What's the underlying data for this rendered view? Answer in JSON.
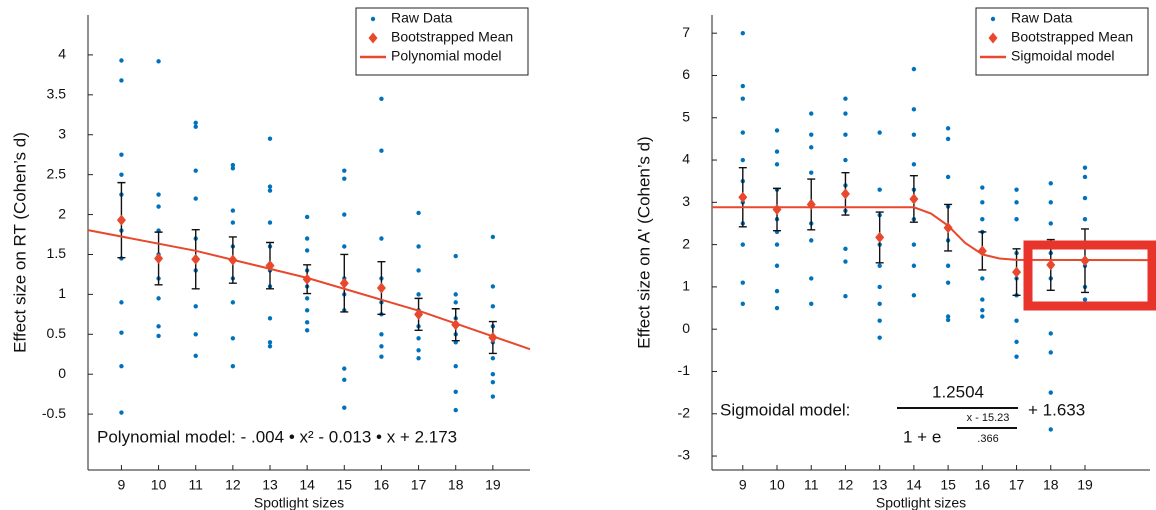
{
  "chart_data": [
    {
      "type": "scatter",
      "ylabel": "Effect size on RT (Cohen’s d)",
      "xlabel": "Spotlight sizes",
      "x": [
        9,
        10,
        11,
        12,
        13,
        14,
        15,
        16,
        17,
        18,
        19
      ],
      "xlim": [
        8.1,
        20
      ],
      "xticks": [
        9,
        10,
        11,
        12,
        13,
        14,
        15,
        16,
        17,
        18,
        19
      ],
      "ylim": [
        -1.2,
        4.5
      ],
      "yticks": [
        -0.5,
        0,
        0.5,
        1,
        1.5,
        2,
        2.5,
        3,
        3.5,
        4
      ],
      "legend": "upper right",
      "series": [
        {
          "name": "Raw Data",
          "kind": "raw",
          "color": "#0072BD",
          "values": [
            [
              3.93,
              3.68,
              2.75,
              2.5,
              2.25,
              1.8,
              1.45,
              0.9,
              0.52,
              0.1,
              -0.48
            ],
            [
              3.92,
              2.25,
              2.1,
              1.8,
              1.5,
              1.2,
              0.95,
              0.6,
              0.48
            ],
            [
              3.15,
              3.1,
              2.55,
              2.2,
              1.7,
              1.3,
              0.85,
              0.5,
              0.23
            ],
            [
              2.62,
              2.58,
              2.05,
              1.9,
              1.6,
              1.2,
              0.9,
              0.45,
              0.1
            ],
            [
              2.95,
              2.35,
              2.3,
              1.9,
              1.6,
              1.3,
              1.1,
              0.7,
              0.4,
              0.35
            ],
            [
              1.97,
              1.7,
              1.55,
              1.3,
              1.1,
              0.95,
              0.8,
              0.65,
              0.55
            ],
            [
              2.55,
              2.45,
              2.0,
              1.6,
              1.2,
              1.0,
              0.8,
              0.07,
              -0.07,
              -0.42
            ],
            [
              3.45,
              2.8,
              1.7,
              1.2,
              0.9,
              0.75,
              0.5,
              0.35,
              0.22
            ],
            [
              2.02,
              1.6,
              1.3,
              1.0,
              0.8,
              0.6,
              0.45,
              0.3,
              0.2
            ],
            [
              1.48,
              1.0,
              0.9,
              0.7,
              0.5,
              0.4,
              0.1,
              -0.22,
              -0.45
            ],
            [
              1.72,
              1.1,
              0.85,
              0.6,
              0.4,
              0.2,
              0.0,
              -0.1,
              -0.28
            ]
          ]
        },
        {
          "name": "Bootstrapped Mean",
          "kind": "mean",
          "color": "#E8482C",
          "values": [
            1.93,
            1.45,
            1.44,
            1.43,
            1.36,
            1.19,
            1.14,
            1.08,
            0.75,
            0.62,
            0.46
          ],
          "errors": [
            0.47,
            0.33,
            0.37,
            0.29,
            0.29,
            0.18,
            0.36,
            0.33,
            0.2,
            0.2,
            0.2
          ]
        },
        {
          "name": "Polynomial model",
          "kind": "line",
          "color": "#E8482C",
          "x": [
            8.1,
            11,
            14,
            17,
            20
          ],
          "values": [
            1.805,
            1.546,
            1.207,
            0.796,
            0.313
          ]
        }
      ],
      "equation": "Polynomial model: - .004 • x² - 0.013 • x + 2.173"
    },
    {
      "type": "scatter",
      "ylabel": "Effect size on A' (Cohen’s d)",
      "xlabel": "Spotlight sizes",
      "x": [
        9,
        10,
        11,
        12,
        13,
        14,
        15,
        16,
        17,
        18,
        19
      ],
      "xlim": [
        8.1,
        20.9
      ],
      "xticks": [
        9,
        10,
        11,
        12,
        13,
        14,
        15,
        16,
        17,
        18,
        19
      ],
      "ylim": [
        -3.33,
        7.43
      ],
      "yticks": [
        -3,
        -2,
        -1,
        0,
        1,
        2,
        3,
        4,
        5,
        6,
        7
      ],
      "legend": "upper right",
      "series": [
        {
          "name": "Raw Data",
          "kind": "raw",
          "color": "#0072BD",
          "values": [
            [
              7.0,
              5.75,
              5.45,
              4.65,
              4.0,
              3.5,
              3.0,
              2.5,
              2.0,
              1.1,
              0.6
            ],
            [
              4.7,
              4.2,
              3.9,
              3.3,
              2.6,
              2.3,
              2.0,
              1.5,
              0.9,
              0.5
            ],
            [
              5.1,
              4.6,
              4.3,
              3.7,
              3.0,
              2.5,
              2.1,
              1.2,
              0.6
            ],
            [
              5.45,
              5.1,
              4.6,
              4.0,
              3.4,
              2.8,
              1.9,
              1.6,
              0.78
            ],
            [
              4.65,
              3.3,
              2.7,
              2.0,
              1.5,
              1.0,
              0.6,
              0.2,
              -0.2
            ],
            [
              6.15,
              5.2,
              4.6,
              3.9,
              3.3,
              2.6,
              2.0,
              1.5,
              0.8
            ],
            [
              4.75,
              4.5,
              3.6,
              2.9,
              2.1,
              1.5,
              1.1,
              0.3,
              0.22
            ],
            [
              3.35,
              3.0,
              2.6,
              2.3,
              1.8,
              1.2,
              0.7,
              0.45,
              0.3
            ],
            [
              3.3,
              3.0,
              2.6,
              1.8,
              1.2,
              0.8,
              0.2,
              -0.3,
              -0.65
            ],
            [
              3.45,
              3.0,
              2.5,
              1.8,
              1.2,
              0.5,
              -0.1,
              -0.55,
              -1.5,
              -2.37
            ],
            [
              3.82,
              3.6,
              3.1,
              2.6,
              2.0,
              1.5,
              1.0,
              0.7,
              0.55
            ]
          ]
        },
        {
          "name": "Bootstrapped Mean",
          "kind": "mean",
          "color": "#E8482C",
          "values": [
            3.12,
            2.83,
            2.95,
            3.2,
            2.17,
            3.08,
            2.4,
            1.85,
            1.35,
            1.52,
            1.62
          ],
          "errors": [
            0.7,
            0.5,
            0.6,
            0.5,
            0.6,
            0.55,
            0.55,
            0.45,
            0.55,
            0.6,
            0.75
          ]
        },
        {
          "name": "Sigmoidal model",
          "kind": "line",
          "color": "#E8482C",
          "x": [
            8.1,
            14,
            14.5,
            15,
            15.23,
            15.5,
            16,
            16.5,
            17,
            20.9
          ],
          "values": [
            2.883,
            2.883,
            2.734,
            2.448,
            2.258,
            2.038,
            1.769,
            1.671,
            1.64,
            1.633
          ]
        }
      ],
      "equation": {
        "label": "Sigmoidal model:",
        "numerator": "1.2504",
        "denominator": "1 + e",
        "exponent_numerator": "x - 15.23",
        "exponent_denominator": ".366",
        "offset": "+ 1.633"
      }
    }
  ]
}
